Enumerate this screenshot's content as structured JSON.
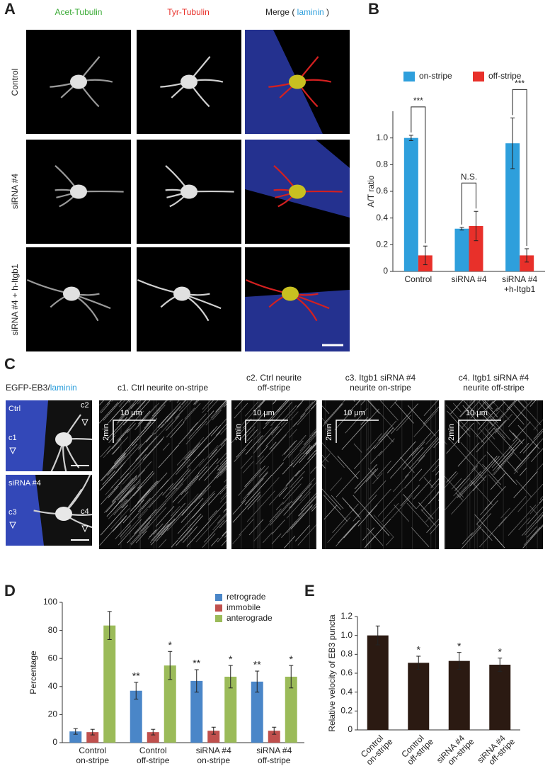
{
  "figure_labels": {
    "a": "A",
    "b": "B",
    "c": "C",
    "d": "D",
    "e": "E"
  },
  "panel_a": {
    "columns": [
      "Acet-Tubulin",
      "Tyr-Tubulin"
    ],
    "merge": [
      "Merge (",
      "laminin",
      ")"
    ],
    "rows": [
      "Control",
      "siRNA #4",
      "siRNA #4 + h-Itgb1"
    ]
  },
  "panel_c": {
    "stain": [
      "EGFP-EB3/",
      "laminin"
    ],
    "images": [
      "Ctrl",
      "siRNA #4"
    ],
    "markers": [
      "c1",
      "c2",
      "c3",
      "c4"
    ],
    "kymographs": [
      [
        "c1. Ctrl neurite on-stripe"
      ],
      [
        "c2. Ctrl neurite",
        "off-stripe"
      ],
      [
        "c3. Itgb1 siRNA #4",
        "neurite on-stripe"
      ],
      [
        "c4. Itgb1 siRNA #4",
        "neurite off-stripe"
      ]
    ],
    "scale_x": "10 μm",
    "scale_y": "2min"
  },
  "chart_data": [
    {
      "type": "bar",
      "ylabel": "A/T ratio",
      "categories": [
        [
          "Control"
        ],
        [
          "siRNA #4"
        ],
        [
          "siRNA #4",
          "+h-Itgb1"
        ]
      ],
      "series": [
        {
          "name": "on-stripe",
          "color": "#2e9fdc",
          "values": [
            1.0,
            0.32,
            0.96
          ],
          "errors": [
            0.02,
            0.01,
            0.19
          ]
        },
        {
          "name": "off-stripe",
          "color": "#e8302a",
          "values": [
            0.12,
            0.34,
            0.12
          ],
          "errors": [
            0.07,
            0.11,
            0.05
          ]
        }
      ],
      "group_annotations": [
        "***",
        "N.S.",
        "***"
      ],
      "ylim": [
        0,
        1.2
      ],
      "yticks": [
        0,
        0.2,
        0.4,
        0.6,
        0.8,
        {
          "value": 1,
          "label": "1.0"
        }
      ],
      "legend": "top"
    },
    {
      "type": "bar",
      "ylabel": "Percentage",
      "categories": [
        [
          "Control",
          "on-stripe"
        ],
        [
          "Control",
          "off-stripe"
        ],
        [
          "siRNA #4",
          "on-stripe"
        ],
        [
          "siRNA #4",
          "off-stripe"
        ]
      ],
      "series": [
        {
          "name": "retrograde",
          "color": "#4a86c8",
          "values": [
            8,
            37,
            44,
            43.5
          ],
          "errors": [
            2,
            6,
            8,
            7.5
          ],
          "significance": [
            null,
            "**",
            "**",
            "**"
          ]
        },
        {
          "name": "immobile",
          "color": "#c0504d",
          "values": [
            7.5,
            7.5,
            8.5,
            8.5
          ],
          "errors": [
            2,
            2,
            2.5,
            2.5
          ]
        },
        {
          "name": "anterograde",
          "color": "#9bbb59",
          "values": [
            83.5,
            55,
            47,
            47
          ],
          "errors": [
            10,
            10,
            8,
            8
          ],
          "significance": [
            null,
            "*",
            "*",
            "*"
          ]
        }
      ],
      "ylim": [
        0,
        100
      ],
      "yticks": [
        0,
        20,
        40,
        60,
        80,
        100
      ],
      "legend": "upper right"
    },
    {
      "type": "bar",
      "ylabel": "Relative velocity of EB3 puncta",
      "categories": [
        [
          "Control",
          "on-stripe"
        ],
        [
          "Control",
          "off-stripe"
        ],
        [
          "siRNA #4",
          "on-stripe"
        ],
        [
          "siRNA #4",
          "off-stripe"
        ]
      ],
      "values": [
        1.0,
        0.71,
        0.73,
        0.69
      ],
      "errors": [
        0.1,
        0.07,
        0.09,
        0.07
      ],
      "significance": [
        null,
        "*",
        "*",
        "*"
      ],
      "color": "#2b1a12",
      "ylim": [
        0,
        1.2
      ],
      "yticks": [
        0,
        0.2,
        0.4,
        0.6,
        0.8,
        {
          "value": 1,
          "label": "1.0"
        },
        1.2
      ]
    }
  ]
}
